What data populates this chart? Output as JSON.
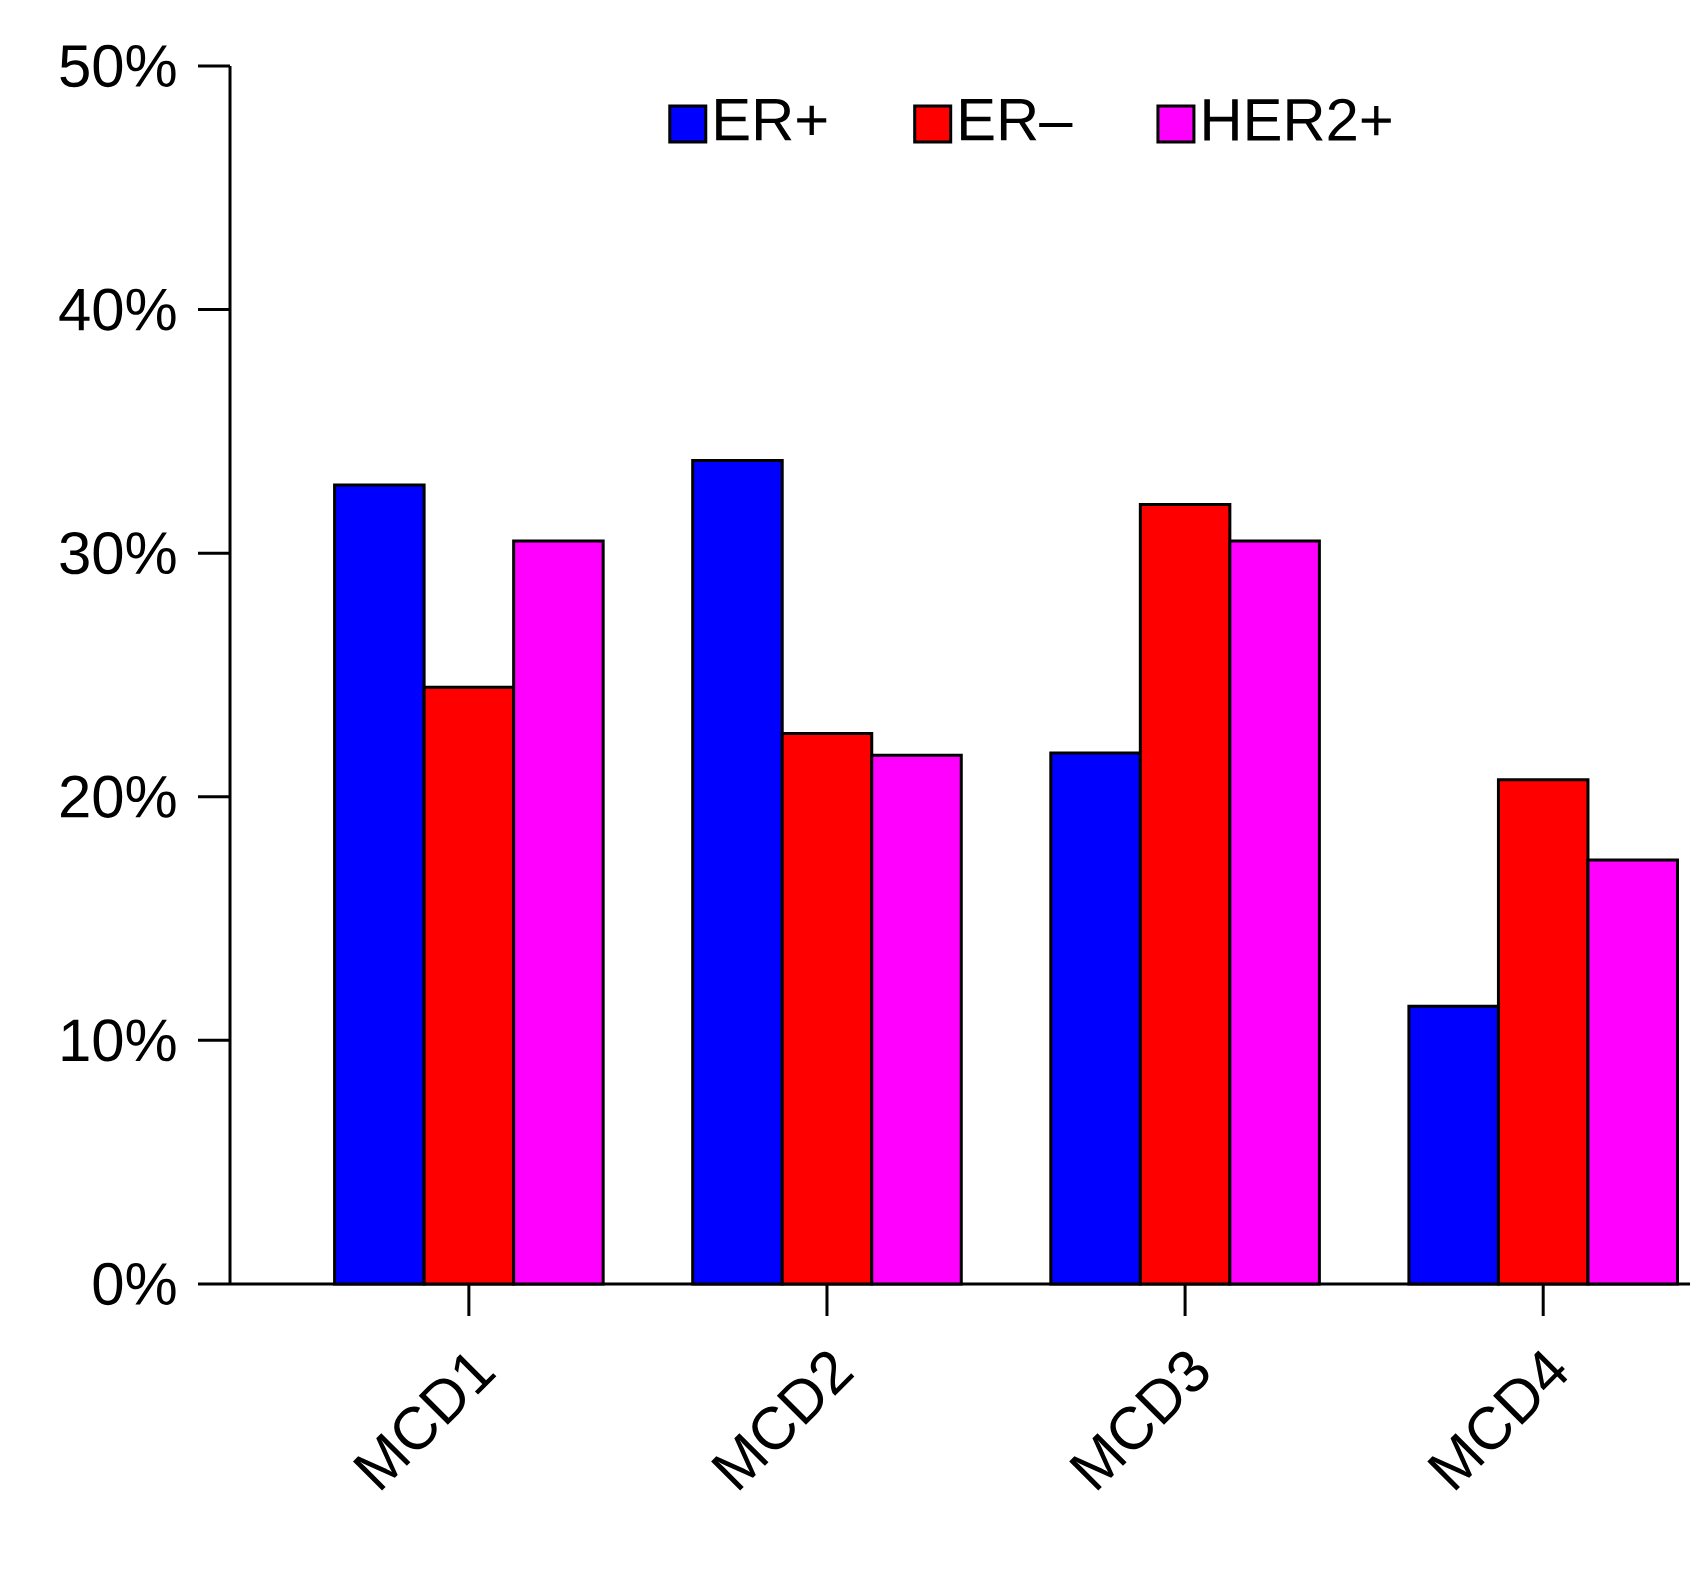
{
  "chart_data": {
    "type": "bar",
    "categories": [
      "MCD1",
      "MCD2",
      "MCD3",
      "MCD4"
    ],
    "series": [
      {
        "name": "ER+",
        "color": "#0000ff",
        "values": [
          32.8,
          33.8,
          21.8,
          11.4
        ]
      },
      {
        "name": "ER–",
        "color": "#ff0000",
        "values": [
          24.5,
          22.6,
          32.0,
          20.7
        ]
      },
      {
        "name": "HER2+",
        "color": "#ff00ff",
        "values": [
          30.5,
          21.7,
          30.5,
          17.4
        ]
      }
    ],
    "ylim": [
      0,
      50
    ],
    "yticks": [
      {
        "value": 0,
        "label": "0%"
      },
      {
        "value": 10,
        "label": "10%"
      },
      {
        "value": 20,
        "label": "20%"
      },
      {
        "value": 30,
        "label": "30%"
      },
      {
        "value": 40,
        "label": "40%"
      },
      {
        "value": 50,
        "label": "50%"
      }
    ],
    "grid": false,
    "legend": "top"
  }
}
